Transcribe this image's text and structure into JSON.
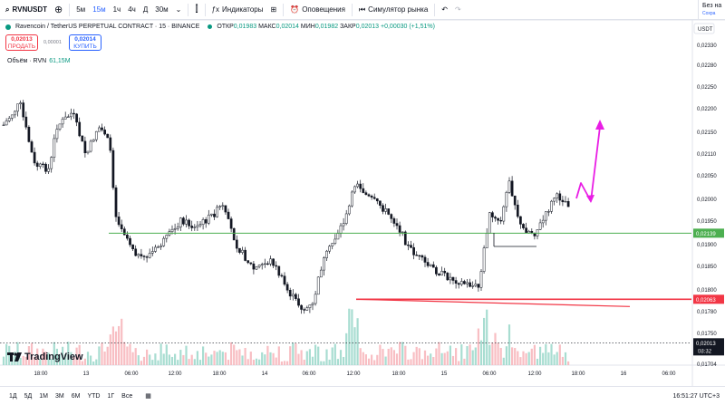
{
  "toolbar": {
    "symbol": "RVNUSDT",
    "intervals": [
      "5м",
      "15м",
      "1ч",
      "4ч",
      "Д",
      "30м"
    ],
    "active_interval": "15м",
    "indicators_label": "Индикаторы",
    "alerts_label": "Оповещения",
    "replay_label": "Симулятор рынка",
    "right_title": "Без на",
    "right_sub": "Сохра"
  },
  "legend": {
    "title": "Ravencoin / TetherUS PERPETUAL CONTRACT · 15 · BINANCE",
    "open_label": "ОТКР",
    "open": "0,01983",
    "high_label": "МАКС",
    "high": "0,02014",
    "low_label": "МИН",
    "low": "0,01982",
    "close_label": "ЗАКР",
    "close": "0,02013",
    "change": "+0,00030 (+1,51%)"
  },
  "trade": {
    "sell_price": "0,02013",
    "sell_label": "ПРОДАТЬ",
    "spread": "0,00001",
    "buy_price": "0,02014",
    "buy_label": "КУПИТЬ"
  },
  "volume_legend": {
    "label": "Объём · RVN",
    "value": "61,15M"
  },
  "currency": "USDT",
  "price_axis": [
    "0,02330",
    "0,02280",
    "0,02250",
    "0,02200",
    "0,02150",
    "0,02110",
    "0,02050",
    "0,02000",
    "0,01950",
    "0,01900",
    "0,01850",
    "0,01800",
    "0,01780",
    "0,01750",
    "0,01720",
    "0,01704"
  ],
  "time_axis": [
    "18:00",
    "13",
    "06:00",
    "12:00",
    "18:00",
    "14",
    "06:00",
    "12:00",
    "18:00",
    "15",
    "06:00",
    "12:00",
    "18:00",
    "16",
    "06:00"
  ],
  "price_tags": {
    "green_line": "0,02139",
    "red_line": "0,02063",
    "last_price": "0,02013",
    "countdown": "08:32"
  },
  "colors": {
    "up": "#089981",
    "down": "#131722",
    "green_line": "#4caf50",
    "red_line": "#f23645",
    "arrow": "#e91ee5",
    "accent": "#2962ff"
  },
  "bottombar": {
    "ranges": [
      "1Д",
      "5Д",
      "1М",
      "3М",
      "6М",
      "YTD",
      "1Г",
      "Все"
    ],
    "clock": "16:51:27 UTC+3"
  },
  "logo_text": "TradingView"
}
